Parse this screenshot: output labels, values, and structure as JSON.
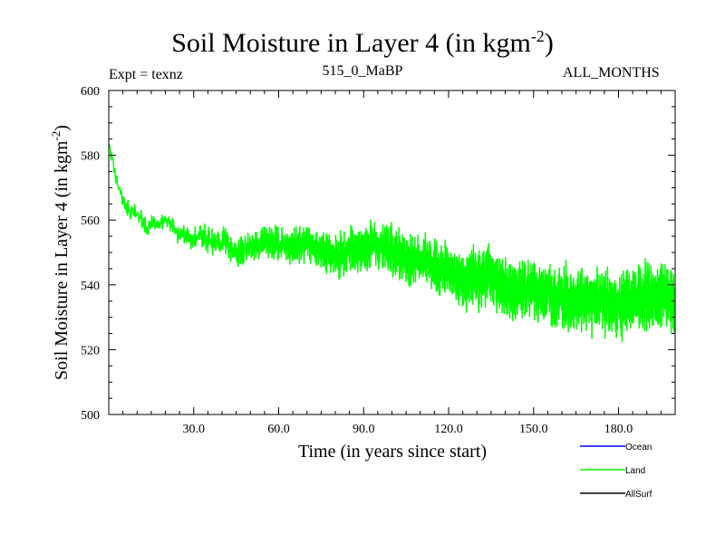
{
  "chart_data": {
    "type": "line",
    "title": "Soil Moisture in Layer 4 (in kgm",
    "title_sup": "-2",
    "title_close": ")",
    "expt_label": "Expt = texnz",
    "subtitle": "515_0_MaBP",
    "months_label": "ALL_MONTHS",
    "xlabel": "Time (in years since start)",
    "ylabel": "Soil Moisture in Layer 4 (in kgm",
    "ylabel_sup": "-2",
    "ylabel_close": ")",
    "xlim": [
      0,
      200
    ],
    "ylim": [
      500,
      600
    ],
    "x_ticks": [
      30,
      60,
      90,
      120,
      150,
      180
    ],
    "x_tick_labels": [
      "30.0",
      "60.0",
      "90.0",
      "120.0",
      "150.0",
      "180.0"
    ],
    "y_ticks": [
      500,
      520,
      540,
      560,
      580,
      600
    ],
    "y_tick_labels": [
      "500",
      "520",
      "540",
      "560",
      "580",
      "600"
    ],
    "legend": [
      {
        "name": "Ocean",
        "color": "#0000ff"
      },
      {
        "name": "Land",
        "color": "#00ff00"
      },
      {
        "name": "AllSurf",
        "color": "#000000"
      }
    ],
    "series": [
      {
        "name": "Land",
        "color": "#00ff00",
        "x_start": 0,
        "x_step": 0.1666,
        "trend_x": [
          0,
          2,
          5,
          10,
          20,
          30,
          45,
          60,
          75,
          90,
          105,
          120,
          135,
          150,
          165,
          180,
          200
        ],
        "trend_y": [
          585,
          574,
          566,
          561,
          557,
          553,
          551,
          552,
          549,
          550,
          547,
          544,
          541,
          538,
          536,
          535,
          535
        ],
        "amplitude": 8,
        "noise_seed": 7
      },
      {
        "name": "Ocean",
        "color": "#0000ff",
        "values": []
      },
      {
        "name": "AllSurf",
        "color": "#000000",
        "values": []
      }
    ]
  }
}
